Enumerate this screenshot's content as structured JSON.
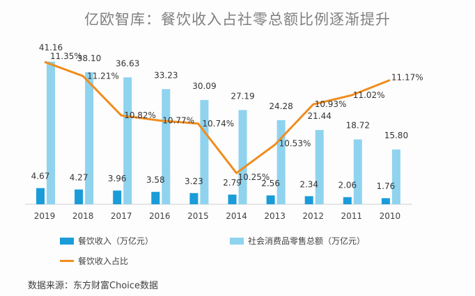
{
  "chart_data": {
    "type": "bar",
    "title": "亿欧智库：餐饮收入占社零总额比例逐渐提升",
    "categories": [
      "2019",
      "2018",
      "2017",
      "2016",
      "2015",
      "2014",
      "2013",
      "2012",
      "2011",
      "2010"
    ],
    "series": [
      {
        "name": "餐饮收入（万亿元）",
        "type": "bar",
        "color": "#1a9cd9",
        "values": [
          4.67,
          4.27,
          3.96,
          3.58,
          3.23,
          2.79,
          2.56,
          2.34,
          2.06,
          1.76
        ],
        "labels": [
          "4.67",
          "4.27",
          "3.96",
          "3.58",
          "3.23",
          "2.79",
          "2.56",
          "2.34",
          "2.06",
          "1.76"
        ]
      },
      {
        "name": "社会消费品零售总额（万亿元）",
        "type": "bar",
        "color": "#8fd3ef",
        "values": [
          41.16,
          38.1,
          36.63,
          33.23,
          30.09,
          27.19,
          24.28,
          21.44,
          18.72,
          15.8
        ],
        "labels": [
          "41.16",
          "38.10",
          "36.63",
          "33.23",
          "30.09",
          "27.19",
          "24.28",
          "21.44",
          "18.72",
          "15.80"
        ]
      },
      {
        "name": "餐饮收入占比",
        "type": "line",
        "color": "#f08c1e",
        "values": [
          11.35,
          11.21,
          10.82,
          10.77,
          10.74,
          10.25,
          10.53,
          10.93,
          11.02,
          11.17
        ],
        "labels": [
          "11.35%",
          "11.21%",
          "10.82%",
          "10.77%",
          "10.74%",
          "10.25%",
          "10.53%",
          "10.93%",
          "11.02%",
          "11.17%"
        ]
      }
    ],
    "ylim_bar": [
      0,
      45
    ],
    "ylim_line": [
      9.9,
      11.55
    ],
    "grid": false
  },
  "source": "数据来源：东方财富Choice数据"
}
